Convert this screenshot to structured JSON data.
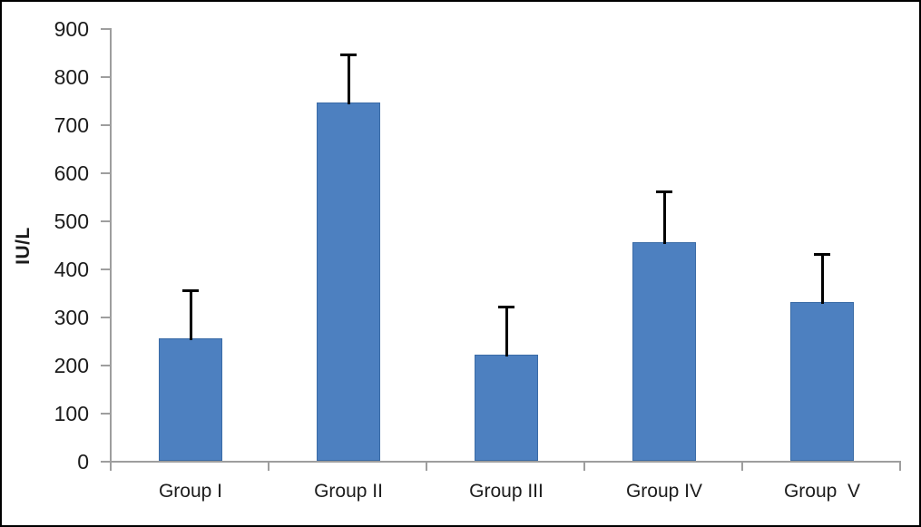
{
  "chart_data": {
    "type": "bar",
    "title": "",
    "xlabel": "",
    "ylabel": "IU/L",
    "categories": [
      "Group I",
      "Group II",
      "Group III",
      "Group IV",
      "Group  V"
    ],
    "values": [
      255,
      745,
      220,
      455,
      330
    ],
    "errors_plus": [
      100,
      100,
      100,
      105,
      100
    ],
    "ylim": [
      0,
      900
    ],
    "ytick_step": 100,
    "ytick_labels": [
      "0",
      "100",
      "200",
      "300",
      "400",
      "500",
      "600",
      "700",
      "800",
      "900"
    ],
    "grid": false,
    "legend_position": "none",
    "colors": {
      "bar_fill": "#4d80c0",
      "bar_border": "#3a6ba6",
      "error_bar": "#000000",
      "axis": "#9e9e9e",
      "text": "#1c1c1c",
      "frame_border": "#000000",
      "background": "#ffffff"
    }
  }
}
